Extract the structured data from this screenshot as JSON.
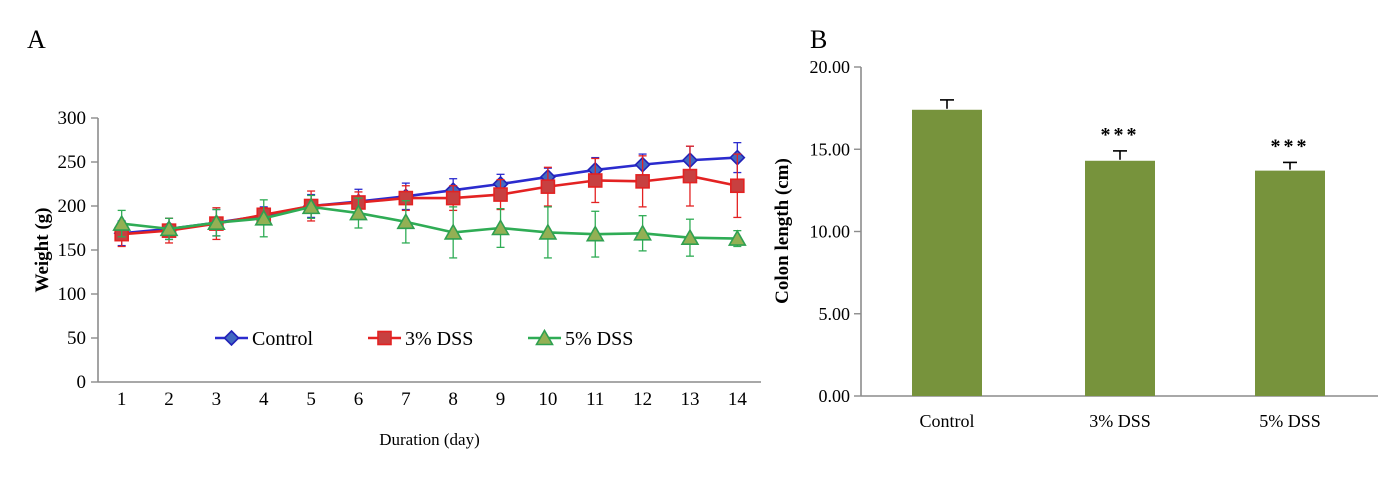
{
  "panels": {
    "a": {
      "letter": "A"
    },
    "b": {
      "letter": "B"
    }
  },
  "chart_data": [
    {
      "type": "line",
      "panel": "A",
      "title": "",
      "xlabel": "Duration  (day)",
      "ylabel": "Weight (g)",
      "x": [
        1,
        2,
        3,
        4,
        5,
        6,
        7,
        8,
        9,
        10,
        11,
        12,
        13,
        14
      ],
      "ylim": [
        0,
        300
      ],
      "yticks": [
        0,
        50,
        100,
        150,
        200,
        250,
        300
      ],
      "ytick_labels": [
        "0",
        "50",
        "100",
        "150",
        "200",
        "250",
        "300"
      ],
      "grid": false,
      "legend_position": "inside-bottom",
      "axis_color": "#8c8c8c",
      "series": [
        {
          "name": "Control",
          "marker": "diamond",
          "line_color": "#2b2bce",
          "marker_fill": "#4169c1",
          "marker_edge": "#2222b8",
          "values": [
            169,
            174,
            181,
            189,
            200,
            205,
            211,
            218,
            225,
            233,
            241,
            247,
            252,
            255
          ],
          "errors": [
            14,
            12,
            15,
            10,
            13,
            14,
            15,
            13,
            11,
            10,
            14,
            12,
            16,
            17
          ]
        },
        {
          "name": "3% DSS",
          "marker": "square",
          "line_color": "#e32222",
          "marker_fill": "#c84040",
          "marker_edge": "#e32222",
          "values": [
            168,
            172,
            180,
            190,
            200,
            204,
            209,
            209,
            213,
            222,
            229,
            228,
            234,
            223
          ],
          "errors": [
            14,
            14,
            18,
            8,
            17,
            12,
            14,
            14,
            17,
            22,
            25,
            29,
            34,
            36
          ]
        },
        {
          "name": "5% DSS",
          "marker": "triangle",
          "line_color": "#2fac55",
          "marker_fill": "#93b054",
          "marker_edge": "#2fa050",
          "values": [
            180,
            174,
            181,
            186,
            199,
            192,
            182,
            170,
            175,
            170,
            168,
            169,
            164,
            163
          ],
          "errors": [
            15,
            12,
            15,
            21,
            13,
            17,
            24,
            29,
            22,
            29,
            26,
            20,
            21,
            9
          ]
        }
      ]
    },
    {
      "type": "bar",
      "panel": "B",
      "title": "",
      "xlabel": "",
      "ylabel": "Colon length (cm)",
      "categories": [
        "Control",
        "3% DSS",
        "5% DSS"
      ],
      "values": [
        17.4,
        14.3,
        13.7
      ],
      "errors": [
        0.6,
        0.6,
        0.5
      ],
      "annotations": [
        "",
        "***",
        "***"
      ],
      "ylim": [
        0,
        20
      ],
      "yticks": [
        0,
        5,
        10,
        15,
        20
      ],
      "ytick_labels": [
        "0.00",
        "5.00",
        "10.00",
        "15.00",
        "20.00"
      ],
      "grid": false,
      "bar_color": "#77933c",
      "error_color": "#000000",
      "axis_color": "#8c8c8c"
    }
  ]
}
